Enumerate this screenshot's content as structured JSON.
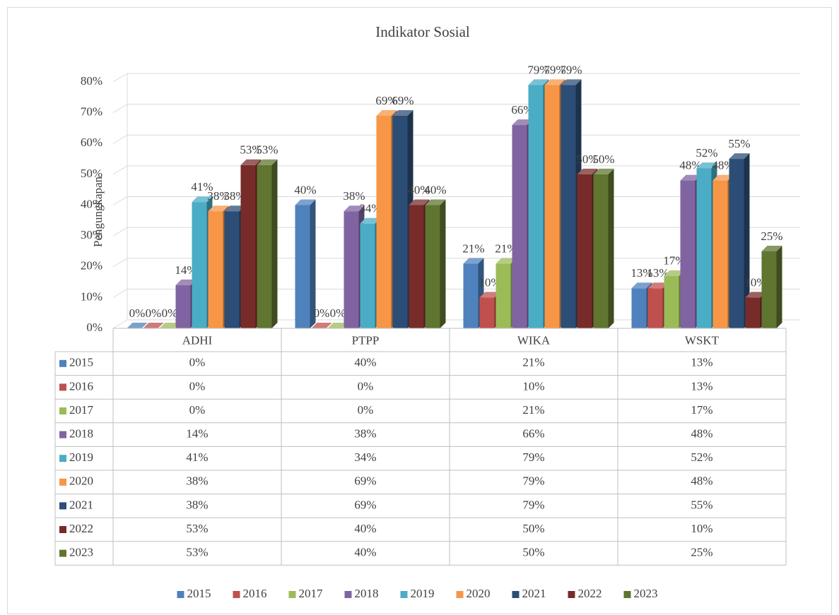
{
  "chart_data": {
    "type": "bar3d",
    "title": "Indikator Sosial",
    "y_label": "Pengungkapan",
    "categories": [
      "ADHI",
      "PTPP",
      "WIKA",
      "WSKT"
    ],
    "series": [
      {
        "name": "2015",
        "color": "#4f81bd",
        "values": [
          0,
          40,
          21,
          13
        ],
        "value_labels": [
          "0%",
          "40%",
          "21%",
          "13%"
        ]
      },
      {
        "name": "2016",
        "color": "#c0504d",
        "values": [
          0,
          0,
          10,
          13
        ],
        "value_labels": [
          "0%",
          "0%",
          "10%",
          "13%"
        ]
      },
      {
        "name": "2017",
        "color": "#9bbb59",
        "values": [
          0,
          0,
          21,
          17
        ],
        "value_labels": [
          "0%",
          "0%",
          "21%",
          "17%"
        ]
      },
      {
        "name": "2018",
        "color": "#8064a2",
        "values": [
          14,
          38,
          66,
          48
        ],
        "value_labels": [
          "14%",
          "38%",
          "66%",
          "48%"
        ]
      },
      {
        "name": "2019",
        "color": "#4bacc6",
        "values": [
          41,
          34,
          79,
          52
        ],
        "value_labels": [
          "41%",
          "34%",
          "79%",
          "52%"
        ]
      },
      {
        "name": "2020",
        "color": "#f79646",
        "values": [
          38,
          69,
          79,
          48
        ],
        "value_labels": [
          "38%",
          "69%",
          "79%",
          "48%"
        ]
      },
      {
        "name": "2021",
        "color": "#2c4d75",
        "values": [
          38,
          69,
          79,
          55
        ],
        "value_labels": [
          "38%",
          "69%",
          "79%",
          "55%"
        ]
      },
      {
        "name": "2022",
        "color": "#772c2a",
        "values": [
          53,
          40,
          50,
          10
        ],
        "value_labels": [
          "53%",
          "40%",
          "50%",
          "10%"
        ]
      },
      {
        "name": "2023",
        "color": "#5f7530",
        "values": [
          53,
          40,
          50,
          25
        ],
        "value_labels": [
          "53%",
          "40%",
          "50%",
          "25%"
        ]
      }
    ],
    "ylim": [
      0,
      80
    ],
    "yticks": [
      {
        "value": 0,
        "label": "0%"
      },
      {
        "value": 10,
        "label": "10%"
      },
      {
        "value": 20,
        "label": "20%"
      },
      {
        "value": 30,
        "label": "30%"
      },
      {
        "value": 40,
        "label": "40%"
      },
      {
        "value": 50,
        "label": "50%"
      },
      {
        "value": 60,
        "label": "60%"
      },
      {
        "value": 70,
        "label": "70%"
      },
      {
        "value": 80,
        "label": "80%"
      }
    ],
    "grid": true,
    "legend": "bottom",
    "data_table": true
  }
}
